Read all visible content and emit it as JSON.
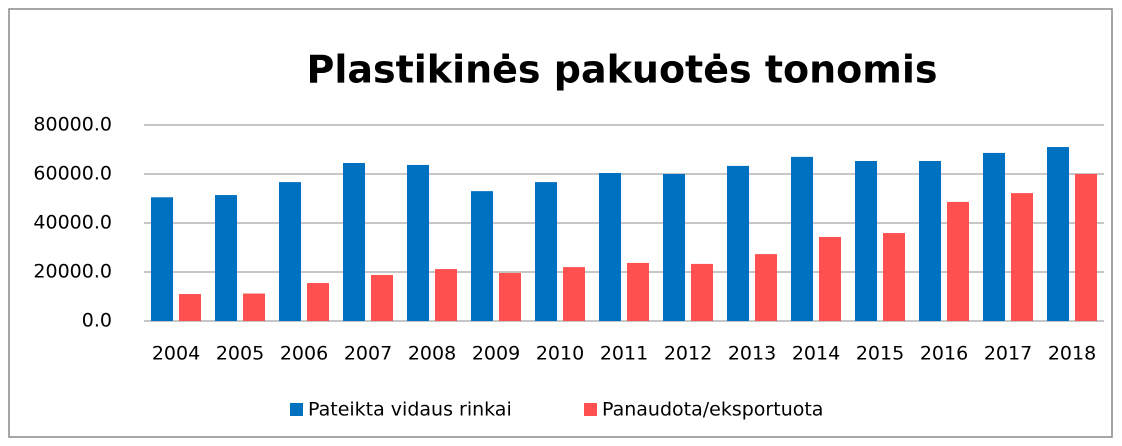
{
  "chart_data": {
    "type": "bar",
    "title": "Plastikinės pakuotės tonomis",
    "categories": [
      "2004",
      "2005",
      "2006",
      "2007",
      "2008",
      "2009",
      "2010",
      "2011",
      "2012",
      "2013",
      "2014",
      "2015",
      "2016",
      "2017",
      "2018"
    ],
    "series": [
      {
        "name": "Pateikta vidaus rinkai",
        "color": "#0070c0",
        "values": [
          50500,
          51400,
          56700,
          64500,
          63700,
          53000,
          56700,
          60400,
          60000,
          63300,
          67000,
          65300,
          65300,
          68600,
          71000
        ]
      },
      {
        "name": "Panaudota/eksportuota",
        "color": "#ff5050",
        "values": [
          11000,
          11200,
          15500,
          18800,
          21200,
          19600,
          22000,
          23700,
          23300,
          27300,
          34300,
          35900,
          48600,
          52200,
          60000
        ]
      }
    ],
    "ylim": [
      0,
      80000
    ],
    "yticks": [
      {
        "value": 0,
        "label": "0.0"
      },
      {
        "value": 20000,
        "label": "20000.0"
      },
      {
        "value": 40000,
        "label": "40000.0"
      },
      {
        "value": 60000,
        "label": "60000.0"
      },
      {
        "value": 80000,
        "label": "80000.0"
      }
    ],
    "grid": true,
    "legend": "bottom"
  }
}
